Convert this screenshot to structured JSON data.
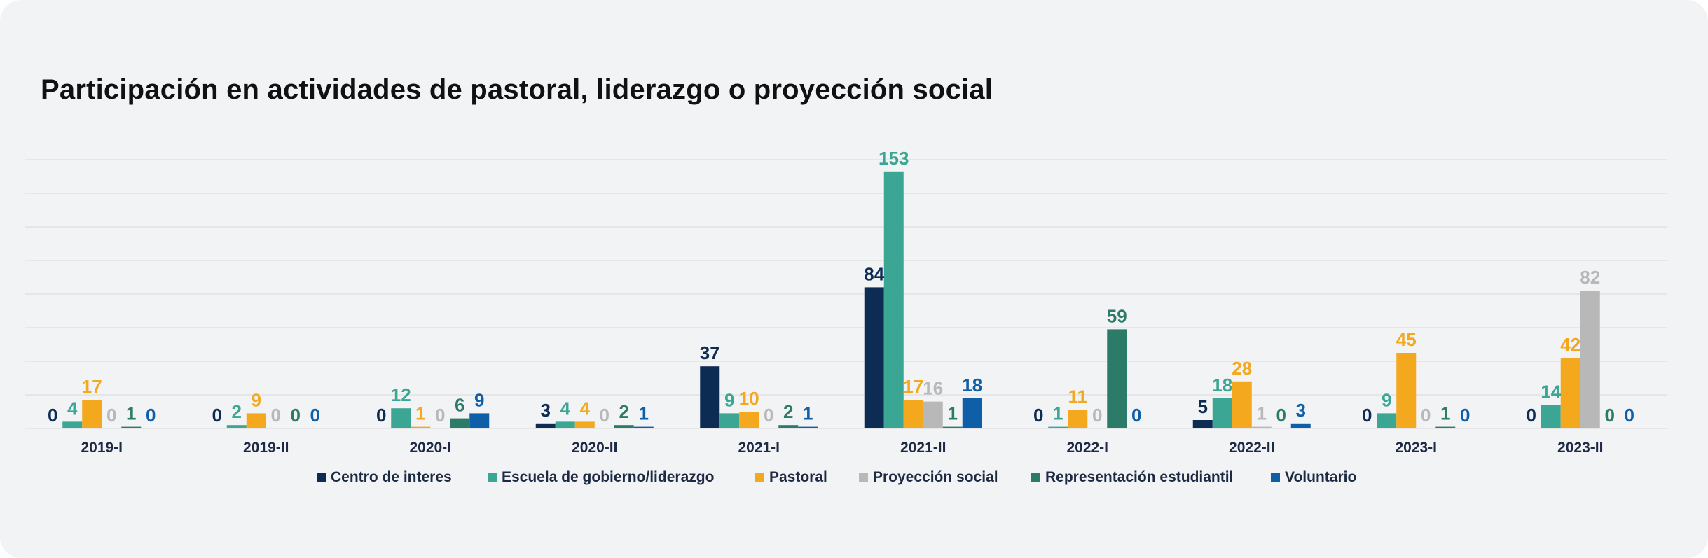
{
  "chart_data": {
    "type": "bar",
    "title": "Participación en actividades de pastoral, liderazgo o proyección social",
    "xlabel": "",
    "ylabel": "",
    "ylim": [
      0,
      160
    ],
    "grid": true,
    "legend": "bottom",
    "categories": [
      "2019-I",
      "2019-II",
      "2020-I",
      "2020-II",
      "2021-I",
      "2021-II",
      "2022-I",
      "2022-II",
      "2023-I",
      "2023-II"
    ],
    "series": [
      {
        "name": "Centro de interes",
        "color": "#0c2c54",
        "values": [
          0,
          0,
          0,
          3,
          37,
          84,
          0,
          5,
          0,
          0
        ]
      },
      {
        "name": "Escuela de gobierno/liderazgo",
        "color": "#3aa693",
        "values": [
          4,
          2,
          12,
          4,
          9,
          153,
          1,
          18,
          9,
          14
        ]
      },
      {
        "name": "Pastoral",
        "color": "#f4a81d",
        "values": [
          17,
          9,
          1,
          4,
          10,
          17,
          11,
          28,
          45,
          42
        ]
      },
      {
        "name": "Proyección social",
        "color": "#b8b8b8",
        "values": [
          0,
          0,
          0,
          0,
          0,
          16,
          0,
          1,
          0,
          82
        ]
      },
      {
        "name": "Representación estudiantil",
        "color": "#2c7a68",
        "values": [
          1,
          0,
          6,
          2,
          2,
          1,
          59,
          0,
          1,
          0
        ]
      },
      {
        "name": "Voluntario",
        "color": "#0f5ea8",
        "values": [
          0,
          0,
          9,
          1,
          1,
          18,
          0,
          3,
          0,
          0
        ]
      }
    ]
  }
}
